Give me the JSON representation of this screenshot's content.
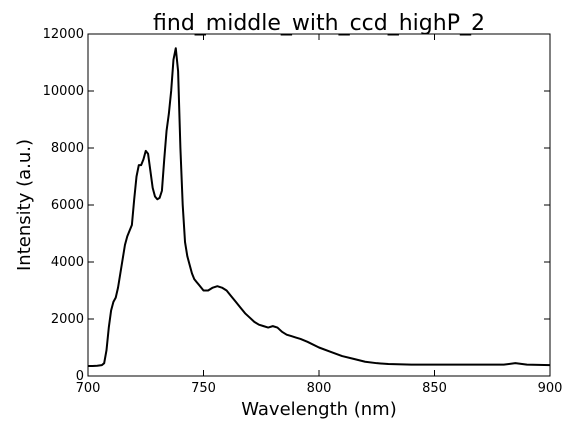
{
  "chart_data": {
    "type": "line",
    "title": "find_middle_with_ccd_highP_2",
    "xlabel": "Wavelength (nm)",
    "ylabel": "Intensity (a.u.)",
    "xlim": [
      700,
      900
    ],
    "ylim": [
      0,
      12000
    ],
    "xticks": [
      700,
      750,
      800,
      850,
      900
    ],
    "yticks": [
      0,
      2000,
      4000,
      6000,
      8000,
      10000,
      12000
    ],
    "grid": false,
    "series": [
      {
        "color": "#000000",
        "x": [
          700,
          702,
          704,
          706,
          707,
          708,
          709,
          710,
          711,
          712,
          713,
          714,
          715,
          716,
          717,
          718,
          719,
          720,
          721,
          722,
          723,
          724,
          725,
          726,
          727,
          728,
          729,
          730,
          731,
          732,
          733,
          734,
          735,
          736,
          737,
          738,
          739,
          740,
          741,
          742,
          743,
          744,
          745,
          746,
          747,
          748,
          749,
          750,
          752,
          754,
          756,
          758,
          760,
          762,
          764,
          766,
          768,
          770,
          772,
          774,
          776,
          778,
          780,
          782,
          784,
          786,
          788,
          790,
          792,
          795,
          800,
          805,
          810,
          815,
          820,
          825,
          830,
          840,
          850,
          860,
          870,
          880,
          885,
          890,
          900
        ],
        "values": [
          350,
          350,
          360,
          380,
          450,
          900,
          1700,
          2300,
          2600,
          2750,
          3100,
          3600,
          4100,
          4600,
          4900,
          5100,
          5300,
          6200,
          7000,
          7400,
          7400,
          7600,
          7900,
          7800,
          7200,
          6600,
          6300,
          6200,
          6250,
          6500,
          7600,
          8600,
          9200,
          10000,
          11100,
          11500,
          10700,
          8000,
          6000,
          4700,
          4200,
          3900,
          3600,
          3400,
          3300,
          3200,
          3100,
          3000,
          3000,
          3100,
          3150,
          3100,
          3000,
          2800,
          2600,
          2400,
          2200,
          2050,
          1900,
          1800,
          1750,
          1700,
          1750,
          1700,
          1550,
          1450,
          1400,
          1350,
          1300,
          1200,
          1000,
          850,
          700,
          600,
          500,
          450,
          420,
          400,
          400,
          400,
          400,
          400,
          450,
          400,
          380
        ]
      }
    ]
  }
}
